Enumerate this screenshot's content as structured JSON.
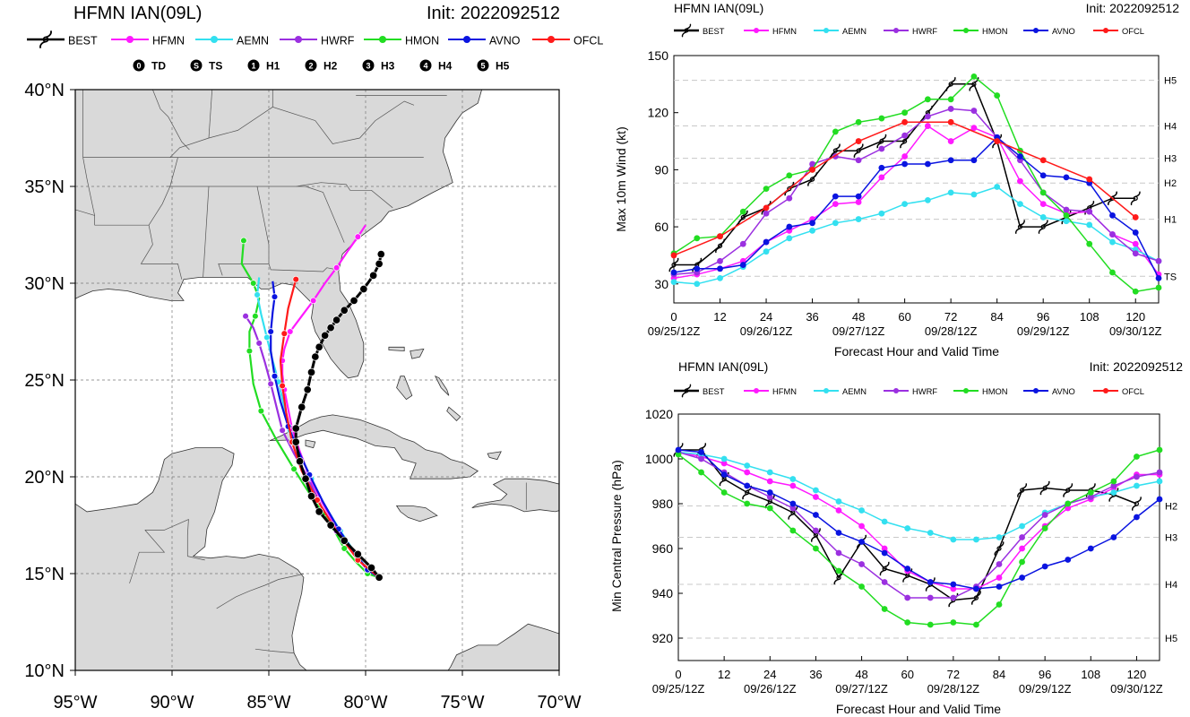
{
  "colors": {
    "BEST": "#000000",
    "HFMN": "#ff1aff",
    "AEMN": "#33e0f0",
    "HWRF": "#9b30e0",
    "HMON": "#22dd22",
    "AVNO": "#0a14e0",
    "OFCL": "#ff1a1a",
    "land": "#d9d9d9",
    "water": "#ffffff",
    "border": "#555555"
  },
  "map": {
    "title_left": "HFMN IAN(09L)",
    "title_right": "Init: 2022092512",
    "legend": [
      "BEST",
      "HFMN",
      "AEMN",
      "HWRF",
      "HMON",
      "AVNO",
      "OFCL"
    ],
    "intensity_legend": [
      {
        "symbol": "0",
        "label": "TD"
      },
      {
        "symbol": "S",
        "label": "TS"
      },
      {
        "symbol": "1",
        "label": "H1"
      },
      {
        "symbol": "2",
        "label": "H2"
      },
      {
        "symbol": "3",
        "label": "H3"
      },
      {
        "symbol": "4",
        "label": "H4"
      },
      {
        "symbol": "5",
        "label": "H5"
      }
    ],
    "lat_labels": [
      "40°N",
      "35°N",
      "30°N",
      "25°N",
      "20°N",
      "15°N",
      "10°N"
    ],
    "lon_labels": [
      "95°W",
      "90°W",
      "85°W",
      "80°W",
      "75°W",
      "70°W"
    ]
  },
  "wind": {
    "title_left": "HFMN IAN(09L)",
    "title_right": "Init: 2022092512",
    "xlabel": "Forecast Hour and Valid Time",
    "ylabel": "Max 10m Wind (kt)",
    "yticks": [
      "30",
      "60",
      "90",
      "120",
      "150"
    ],
    "xticks": [
      "0",
      "12",
      "24",
      "36",
      "48",
      "60",
      "72",
      "84",
      "96",
      "108",
      "120"
    ],
    "date_ticks": [
      "09/25/12Z",
      "09/26/12Z",
      "09/27/12Z",
      "09/28/12Z",
      "09/29/12Z",
      "09/30/12Z"
    ],
    "category_labels": [
      {
        "label": "TS",
        "value": 34
      },
      {
        "label": "H1",
        "value": 64
      },
      {
        "label": "H2",
        "value": 83
      },
      {
        "label": "H3",
        "value": 96
      },
      {
        "label": "H4",
        "value": 113
      },
      {
        "label": "H5",
        "value": 137
      }
    ]
  },
  "pressure": {
    "title_left": "HFMN IAN(09L)",
    "title_right": "Init: 2022092512",
    "xlabel": "Forecast Hour and Valid Time",
    "ylabel": "Min Central Pressure (hPa)",
    "yticks": [
      "920",
      "940",
      "960",
      "980",
      "1000",
      "1020"
    ],
    "xticks": [
      "0",
      "12",
      "24",
      "36",
      "48",
      "60",
      "72",
      "84",
      "96",
      "108",
      "120"
    ],
    "date_ticks": [
      "09/25/12Z",
      "09/26/12Z",
      "09/27/12Z",
      "09/28/12Z",
      "09/29/12Z",
      "09/30/12Z"
    ],
    "category_labels": [
      {
        "label": "H2",
        "value": 979
      },
      {
        "label": "H3",
        "value": 965
      },
      {
        "label": "H4",
        "value": 944
      },
      {
        "label": "H5",
        "value": 920
      }
    ]
  },
  "chart_data": [
    {
      "type": "line",
      "title": "HFMN IAN(09L)",
      "subtitle": "Init: 2022092512",
      "xlabel": "Forecast Hour and Valid Time",
      "ylabel": "Max 10m Wind (kt)",
      "xlim": [
        0,
        126
      ],
      "ylim": [
        20,
        150
      ],
      "series": [
        {
          "name": "BEST",
          "x": [
            0,
            6,
            12,
            18,
            24,
            30,
            36,
            42,
            48,
            54,
            60,
            66,
            72,
            78,
            84,
            90,
            96,
            102,
            108,
            114,
            120
          ],
          "values": [
            40,
            40,
            50,
            65,
            70,
            80,
            85,
            100,
            100,
            105,
            105,
            120,
            135,
            135,
            105,
            60,
            60,
            65,
            70,
            75,
            75
          ]
        },
        {
          "name": "HFMN",
          "x": [
            0,
            6,
            12,
            18,
            24,
            30,
            36,
            42,
            48,
            54,
            60,
            66,
            72,
            78,
            84,
            90,
            96,
            102,
            108,
            114,
            120,
            126
          ],
          "values": [
            33,
            35,
            38,
            42,
            52,
            58,
            64,
            72,
            73,
            86,
            97,
            113,
            105,
            112,
            107,
            84,
            72,
            67,
            68,
            56,
            51,
            35
          ]
        },
        {
          "name": "AEMN",
          "x": [
            0,
            6,
            12,
            18,
            24,
            30,
            36,
            42,
            48,
            54,
            60,
            66,
            72,
            78,
            84,
            90,
            96,
            102,
            108,
            114,
            120,
            126
          ],
          "values": [
            31,
            30,
            33,
            39,
            47,
            54,
            58,
            62,
            64,
            67,
            72,
            74,
            78,
            77,
            81,
            72,
            65,
            63,
            61,
            52,
            48,
            42
          ]
        },
        {
          "name": "HWRF",
          "x": [
            0,
            6,
            12,
            18,
            24,
            30,
            36,
            42,
            48,
            54,
            60,
            66,
            72,
            78,
            84,
            90,
            96,
            102,
            108,
            114,
            120,
            126
          ],
          "values": [
            35,
            36,
            42,
            51,
            67,
            75,
            93,
            97,
            95,
            101,
            108,
            118,
            122,
            121,
            107,
            95,
            78,
            69,
            68,
            56,
            46,
            42
          ]
        },
        {
          "name": "HMON",
          "x": [
            0,
            6,
            12,
            18,
            24,
            30,
            36,
            42,
            48,
            54,
            60,
            66,
            72,
            78,
            84,
            90,
            96,
            102,
            108,
            114,
            120,
            126
          ],
          "values": [
            46,
            54,
            55,
            68,
            80,
            87,
            90,
            110,
            115,
            117,
            120,
            127,
            127,
            139,
            129,
            100,
            78,
            66,
            51,
            36,
            26,
            28
          ]
        },
        {
          "name": "AVNO",
          "x": [
            0,
            6,
            12,
            18,
            24,
            30,
            36,
            42,
            48,
            54,
            60,
            66,
            72,
            78,
            84,
            90,
            96,
            102,
            108,
            114,
            120,
            126
          ],
          "values": [
            36,
            38,
            38,
            40,
            52,
            60,
            62,
            76,
            76,
            91,
            93,
            93,
            95,
            95,
            107,
            97,
            87,
            86,
            83,
            66,
            57,
            33
          ]
        },
        {
          "name": "OFCL",
          "x": [
            0,
            12,
            24,
            36,
            48,
            60,
            72,
            84,
            96,
            108,
            120
          ],
          "values": [
            45,
            55,
            70,
            90,
            105,
            115,
            115,
            105,
            95,
            85,
            65
          ]
        }
      ]
    },
    {
      "type": "line",
      "title": "HFMN IAN(09L)",
      "subtitle": "Init: 2022092512",
      "xlabel": "Forecast Hour and Valid Time",
      "ylabel": "Min Central Pressure (hPa)",
      "xlim": [
        0,
        126
      ],
      "ylim": [
        910,
        1020
      ],
      "series": [
        {
          "name": "BEST",
          "x": [
            0,
            6,
            12,
            18,
            24,
            30,
            36,
            42,
            48,
            54,
            60,
            66,
            72,
            78,
            84,
            90,
            96,
            102,
            108,
            114,
            120
          ],
          "values": [
            1004,
            1004,
            991,
            985,
            981,
            976,
            966,
            947,
            963,
            951,
            948,
            944,
            937,
            938,
            960,
            986,
            987,
            986,
            986,
            984,
            980
          ]
        },
        {
          "name": "HFMN",
          "x": [
            0,
            6,
            12,
            18,
            24,
            30,
            36,
            42,
            48,
            54,
            60,
            66,
            72,
            78,
            84,
            90,
            96,
            102,
            108,
            114,
            120,
            126
          ],
          "values": [
            1003,
            1001,
            998,
            994,
            990,
            988,
            983,
            977,
            970,
            960,
            950,
            945,
            942,
            942,
            947,
            960,
            970,
            978,
            982,
            987,
            993,
            993
          ]
        },
        {
          "name": "AEMN",
          "x": [
            0,
            6,
            12,
            18,
            24,
            30,
            36,
            42,
            48,
            54,
            60,
            66,
            72,
            78,
            84,
            90,
            96,
            102,
            108,
            114,
            120,
            126
          ],
          "values": [
            1003,
            1002,
            1000,
            997,
            994,
            991,
            986,
            981,
            977,
            972,
            969,
            967,
            964,
            964,
            965,
            970,
            976,
            980,
            983,
            985,
            988,
            990
          ]
        },
        {
          "name": "HWRF",
          "x": [
            0,
            6,
            12,
            18,
            24,
            30,
            36,
            42,
            48,
            54,
            60,
            66,
            72,
            78,
            84,
            90,
            96,
            102,
            108,
            114,
            120,
            126
          ],
          "values": [
            1003,
            1000,
            994,
            988,
            983,
            978,
            968,
            958,
            953,
            945,
            938,
            938,
            938,
            943,
            953,
            965,
            975,
            980,
            983,
            988,
            992,
            994
          ]
        },
        {
          "name": "HMON",
          "x": [
            0,
            6,
            12,
            18,
            24,
            30,
            36,
            42,
            48,
            54,
            60,
            66,
            72,
            78,
            84,
            90,
            96,
            102,
            108,
            114,
            120,
            126
          ],
          "values": [
            1002,
            994,
            985,
            980,
            978,
            968,
            960,
            950,
            943,
            933,
            927,
            926,
            927,
            926,
            935,
            954,
            969,
            980,
            985,
            990,
            1001,
            1004
          ]
        },
        {
          "name": "AVNO",
          "x": [
            0,
            6,
            12,
            18,
            24,
            30,
            36,
            42,
            48,
            54,
            60,
            66,
            72,
            78,
            84,
            90,
            96,
            102,
            108,
            114,
            120,
            126
          ],
          "values": [
            1004,
            1003,
            993,
            988,
            985,
            980,
            975,
            967,
            963,
            958,
            951,
            945,
            944,
            942,
            943,
            947,
            952,
            955,
            960,
            965,
            974,
            982
          ]
        }
      ]
    }
  ]
}
